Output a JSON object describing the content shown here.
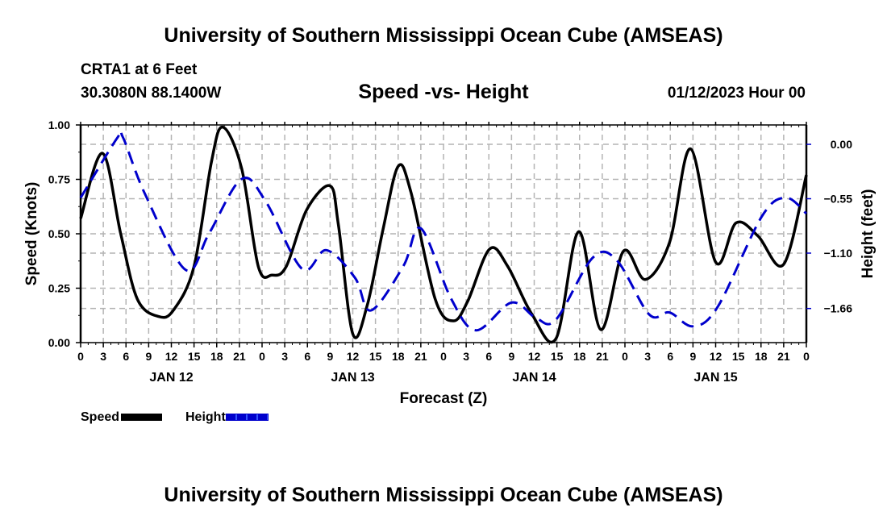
{
  "header": {
    "main_title": "University of Southern Mississippi Ocean Cube (AMSEAS)",
    "station": "CRTA1 at 6 Feet",
    "coords": "30.3080N  88.1400W",
    "subtitle": "Speed -vs- Height",
    "datetime": "01/12/2023 Hour 00"
  },
  "footer": {
    "bottom_title": "University of Southern Mississippi Ocean Cube (AMSEAS)"
  },
  "legend": {
    "speed_label": "Speed",
    "height_label": "Height"
  },
  "colors": {
    "speed": "#000000",
    "height": "#0000cc",
    "grid": "#b4b4b4"
  },
  "chart_data": {
    "type": "line",
    "title": "Speed -vs- Height",
    "xlabel": "Forecast (Z)",
    "ylabel": "Speed (Knots)",
    "y2label": "Height (feet)",
    "xlim_hours": [
      0,
      96
    ],
    "x_tick_hours": [
      0,
      3,
      6,
      9,
      12,
      15,
      18,
      21,
      24,
      27,
      30,
      33,
      36,
      39,
      42,
      45,
      48,
      51,
      54,
      57,
      60,
      63,
      66,
      69,
      72,
      75,
      78,
      81,
      84,
      87,
      90,
      93,
      96
    ],
    "x_tick_labels": [
      "0",
      "3",
      "6",
      "9",
      "12",
      "15",
      "18",
      "21",
      "0",
      "3",
      "6",
      "9",
      "12",
      "15",
      "18",
      "21",
      "0",
      "3",
      "6",
      "9",
      "12",
      "15",
      "18",
      "21",
      "0",
      "3",
      "6",
      "9",
      "12",
      "15",
      "18",
      "21",
      "0"
    ],
    "date_labels": [
      {
        "label": "JAN 12",
        "hour": 12
      },
      {
        "label": "JAN 13",
        "hour": 36
      },
      {
        "label": "JAN 14",
        "hour": 60
      },
      {
        "label": "JAN 15",
        "hour": 84
      }
    ],
    "ylim": [
      0,
      1.0
    ],
    "y_ticks": [
      0.0,
      0.25,
      0.5,
      0.75,
      1.0
    ],
    "y_tick_labels": [
      "0.00",
      "0.25",
      "0.50",
      "0.75",
      "1.00"
    ],
    "y2lim": [
      -2.005,
      0.196
    ],
    "y2_ticks": [
      0.0,
      -0.55,
      -1.1,
      -1.66
    ],
    "y2_tick_labels": [
      "0.00",
      "−0.55",
      "−1.10",
      "−1.66"
    ],
    "grid": true,
    "legend_position": "bottom-left",
    "series": [
      {
        "name": "Speed",
        "axis": "left",
        "style": "solid",
        "x": [
          0,
          2.9,
          5.3,
          7.5,
          10.3,
          12.3,
          15,
          17.3,
          18.8,
          21.3,
          23.5,
          25.3,
          27.2,
          29.9,
          33,
          34.1,
          36,
          37.9,
          40,
          42,
          43.7,
          46.9,
          49.3,
          51.2,
          54.1,
          56.5,
          59.7,
          62.9,
          65.9,
          68.8,
          71.8,
          74.7,
          77.9,
          80.7,
          84,
          86.7,
          89.6,
          93,
          96
        ],
        "values": [
          0.57,
          0.87,
          0.5,
          0.2,
          0.12,
          0.15,
          0.35,
          0.83,
          0.99,
          0.8,
          0.35,
          0.31,
          0.35,
          0.61,
          0.72,
          0.54,
          0.04,
          0.17,
          0.52,
          0.81,
          0.69,
          0.2,
          0.1,
          0.19,
          0.43,
          0.35,
          0.13,
          0.02,
          0.51,
          0.06,
          0.42,
          0.29,
          0.46,
          0.89,
          0.37,
          0.55,
          0.49,
          0.36,
          0.77
        ]
      },
      {
        "name": "Height",
        "axis": "right",
        "style": "dashed",
        "x": [
          0,
          4.8,
          5.6,
          8.5,
          13.9,
          17,
          21.3,
          24.5,
          29.3,
          32.5,
          36.3,
          38.4,
          42.7,
          45,
          49,
          52.3,
          57,
          60.3,
          62.9,
          67.7,
          70.9,
          75.2,
          77.9,
          81,
          84.3,
          90.1,
          93.3,
          96
        ],
        "values": [
          -0.54,
          0.06,
          0.07,
          -0.5,
          -1.27,
          -0.9,
          -0.35,
          -0.58,
          -1.26,
          -1.07,
          -1.35,
          -1.68,
          -1.23,
          -0.85,
          -1.56,
          -1.88,
          -1.6,
          -1.76,
          -1.77,
          -1.15,
          -1.17,
          -1.72,
          -1.7,
          -1.84,
          -1.64,
          -0.73,
          -0.54,
          -0.7
        ]
      }
    ]
  }
}
